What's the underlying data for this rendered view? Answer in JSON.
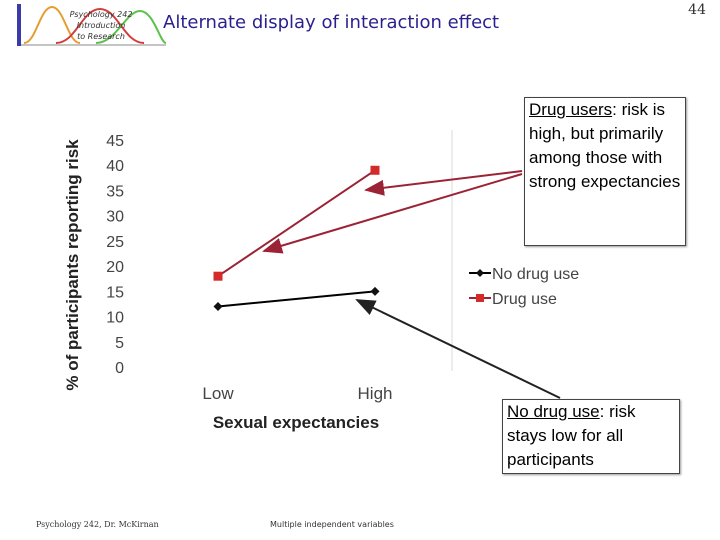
{
  "header": {
    "logo_lines": [
      "Psychology 242",
      "Introduction",
      "to Research"
    ],
    "title": "Alternate display of interaction effect",
    "page_number": "44"
  },
  "chart_data": {
    "type": "line",
    "categories": [
      "Low",
      "High"
    ],
    "series": [
      {
        "name": "No drug use",
        "values": [
          12,
          15
        ],
        "color": "#000000",
        "marker": "diamond"
      },
      {
        "name": "Drug use",
        "values": [
          18,
          39
        ],
        "color": "#9b2335",
        "marker": "square"
      }
    ],
    "xlabel": "Sexual expectancies",
    "ylabel": "% of participants reporting risk",
    "ylim": [
      0,
      45
    ],
    "yticks": [
      0,
      5,
      10,
      15,
      20,
      25,
      30,
      35,
      40,
      45
    ],
    "grid": false,
    "legend_position": "right"
  },
  "callouts": {
    "drug_users": {
      "heading": "Drug users",
      "text": ": risk is high, but primarily among those with strong expectancies"
    },
    "no_drug_use": {
      "heading": "No drug use",
      "text": ": risk stays low for all participants"
    }
  },
  "footer": {
    "left": "Psychology 242, Dr. McKirnan",
    "center": "Multiple independent variables"
  },
  "colors": {
    "title": "#2a1f8f",
    "drug_use_series": "#9b2335",
    "no_drug_use_series": "#000000"
  }
}
